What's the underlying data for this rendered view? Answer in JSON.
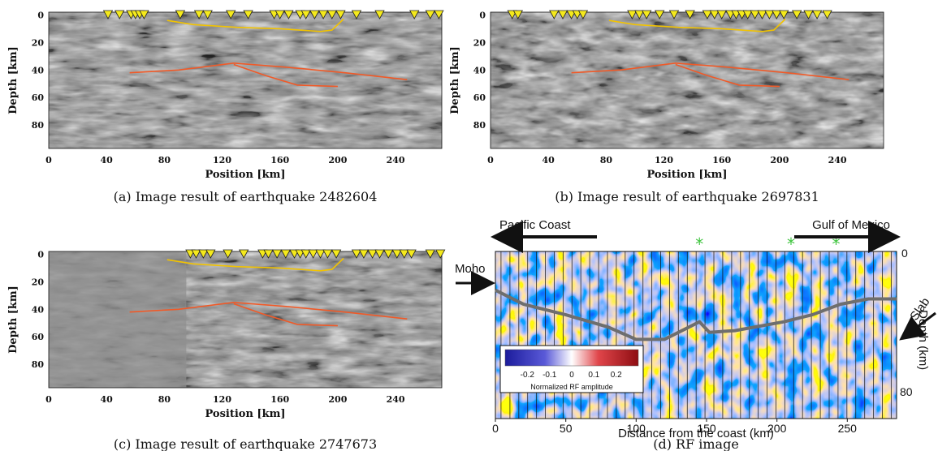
{
  "panels": [
    {
      "id": "a",
      "caption": "(a) Image result of earthquake 2482604",
      "xlabel": "Position [km]",
      "ylabel": "Depth [km]",
      "xticks": [
        0,
        40,
        80,
        120,
        160,
        200,
        240
      ],
      "yticks": [
        0,
        20,
        40,
        60,
        80
      ],
      "xlim": [
        0,
        272
      ],
      "ylim": [
        97,
        -2
      ],
      "stations_km": [
        41,
        49,
        57,
        60,
        63,
        66,
        91,
        104,
        110,
        126,
        138,
        156,
        160,
        166,
        174,
        178,
        184,
        190,
        196,
        202,
        213,
        229,
        253,
        264,
        270
      ],
      "interfaces": [
        {
          "name": "",
          "color": "#f2c300",
          "points": [
            [
              82,
              4
            ],
            [
              100,
              7
            ],
            [
              130,
              9
            ],
            [
              160,
              10
            ],
            [
              188,
              12
            ],
            [
              196,
              11
            ],
            [
              204,
              3
            ]
          ]
        },
        {
          "name": "",
          "color": "#f05a28",
          "points": [
            [
              56,
              42
            ],
            [
              90,
              40
            ],
            [
              128,
              35
            ],
            [
              165,
              38
            ],
            [
              205,
              42
            ],
            [
              248,
              47
            ]
          ]
        },
        {
          "name": "",
          "color": "#f05a28",
          "points": [
            [
              128,
              36
            ],
            [
              150,
              44
            ],
            [
              172,
              51
            ],
            [
              200,
              52
            ]
          ]
        }
      ]
    },
    {
      "id": "b",
      "caption": "(b) Image result of earthquake 2697831",
      "xlabel": "Position [km]",
      "ylabel": "Depth [km]",
      "xticks": [
        0,
        40,
        80,
        120,
        160,
        200,
        240
      ],
      "yticks": [
        0,
        20,
        40,
        60,
        80
      ],
      "xlim": [
        0,
        272
      ],
      "ylim": [
        97,
        -2
      ],
      "stations_km": [
        15,
        19,
        44,
        50,
        56,
        60,
        64,
        98,
        103,
        108,
        117,
        127,
        138,
        150,
        155,
        160,
        166,
        170,
        174,
        178,
        183,
        188,
        193,
        198,
        203,
        212,
        220,
        226,
        233
      ],
      "interfaces": [
        {
          "name": "",
          "color": "#f2c300",
          "points": [
            [
              82,
              4
            ],
            [
              100,
              7
            ],
            [
              130,
              9
            ],
            [
              160,
              10
            ],
            [
              188,
              12
            ],
            [
              196,
              11
            ],
            [
              204,
              3
            ]
          ]
        },
        {
          "name": "",
          "color": "#f05a28",
          "points": [
            [
              56,
              42
            ],
            [
              90,
              40
            ],
            [
              128,
              35
            ],
            [
              165,
              38
            ],
            [
              205,
              42
            ],
            [
              248,
              47
            ]
          ]
        },
        {
          "name": "",
          "color": "#f05a28",
          "points": [
            [
              128,
              36
            ],
            [
              150,
              44
            ],
            [
              172,
              51
            ],
            [
              200,
              52
            ]
          ]
        }
      ]
    },
    {
      "id": "c",
      "caption": "(c) Image result of earthquake 2747673",
      "xlabel": "Position [km]",
      "ylabel": "Depth [km]",
      "xticks": [
        0,
        40,
        80,
        120,
        160,
        200,
        240
      ],
      "yticks": [
        0,
        20,
        40,
        60,
        80
      ],
      "xlim": [
        0,
        272
      ],
      "ylim": [
        97,
        -2
      ],
      "stations_km": [
        98,
        102,
        107,
        112,
        124,
        135,
        148,
        152,
        158,
        164,
        170,
        174,
        178,
        183,
        188,
        193,
        199,
        213,
        218,
        224,
        229,
        235,
        241,
        246,
        251,
        264,
        271
      ],
      "interfaces": [
        {
          "name": "",
          "color": "#f2c300",
          "points": [
            [
              82,
              4
            ],
            [
              100,
              7
            ],
            [
              130,
              9
            ],
            [
              160,
              10
            ],
            [
              188,
              12
            ],
            [
              196,
              11
            ],
            [
              204,
              3
            ]
          ]
        },
        {
          "name": "",
          "color": "#f05a28",
          "points": [
            [
              56,
              42
            ],
            [
              90,
              40
            ],
            [
              128,
              35
            ],
            [
              165,
              38
            ],
            [
              205,
              42
            ],
            [
              248,
              47
            ]
          ]
        },
        {
          "name": "",
          "color": "#f05a28",
          "points": [
            [
              128,
              36
            ],
            [
              150,
              44
            ],
            [
              172,
              51
            ],
            [
              200,
              52
            ]
          ]
        }
      ]
    }
  ],
  "rf_panel": {
    "caption": "(d) RF image",
    "xlabel": "Distance from the coast (km)",
    "ylabel": "Depth (km)",
    "xticks": [
      0,
      50,
      100,
      150,
      200,
      250
    ],
    "xlim": [
      0,
      285
    ],
    "depth_ticks": [
      0,
      80
    ],
    "depth_range": [
      0,
      95
    ],
    "left_arrow_label": "Pacific Coast",
    "right_arrow_label": "Gulf of Mexico",
    "moho_label": "Moho",
    "slab_label": "Slab",
    "star_positions_km": [
      145,
      210,
      242
    ],
    "moho_profile": [
      [
        0,
        22
      ],
      [
        20,
        30
      ],
      [
        50,
        36
      ],
      [
        80,
        43
      ],
      [
        100,
        50
      ],
      [
        120,
        50
      ],
      [
        135,
        44
      ],
      [
        145,
        40
      ],
      [
        152,
        46
      ],
      [
        170,
        45
      ],
      [
        205,
        40
      ],
      [
        225,
        36
      ],
      [
        245,
        30
      ],
      [
        265,
        27
      ],
      [
        285,
        27
      ]
    ],
    "colorbar": {
      "label": "Normalized RF amplitude",
      "ticks": [
        "-0.2",
        "-0.1",
        "0",
        "0.1",
        "0.2"
      ],
      "colors": [
        "#1c1c9c",
        "#ffffff",
        "#b0141a"
      ]
    }
  },
  "chart_data": [
    {
      "type": "heatmap",
      "title": "",
      "caption": "(a) Image result of earthquake 2482604",
      "xlabel": "Position [km]",
      "ylabel": "Depth [km]",
      "xlim": [
        0,
        272
      ],
      "ylim": [
        97,
        0
      ]
    },
    {
      "type": "heatmap",
      "title": "",
      "caption": "(b) Image result of earthquake 2697831",
      "xlabel": "Position [km]",
      "ylabel": "Depth [km]",
      "xlim": [
        0,
        272
      ],
      "ylim": [
        97,
        0
      ]
    },
    {
      "type": "heatmap",
      "title": "",
      "caption": "(c) Image result of earthquake 2747673",
      "xlabel": "Position [km]",
      "ylabel": "Depth [km]",
      "xlim": [
        0,
        272
      ],
      "ylim": [
        97,
        0
      ]
    },
    {
      "type": "heatmap",
      "title": "",
      "caption": "(d) RF image",
      "xlabel": "Distance from the coast (km)",
      "ylabel": "Depth (km)",
      "xlim": [
        0,
        285
      ],
      "colorbar_label": "Normalized RF amplitude",
      "colorbar_ticks": [
        -0.2,
        -0.1,
        0,
        0.1,
        0.2
      ]
    }
  ]
}
